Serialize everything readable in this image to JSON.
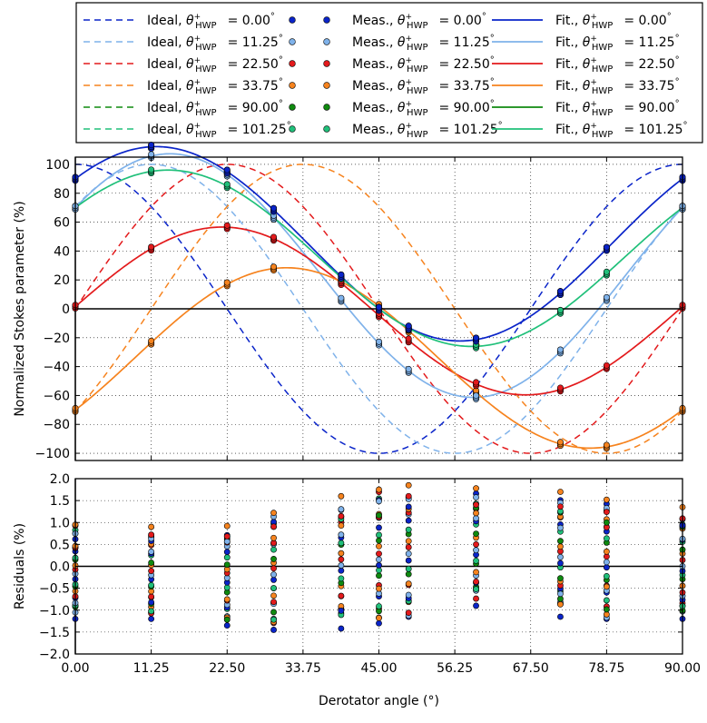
{
  "chart_data": [
    {
      "type": "line",
      "panel": "main",
      "ylabel": "Normalized Stokes parameter (%)",
      "xlabel": "",
      "xlim": [
        0,
        90
      ],
      "ylim": [
        -105,
        105
      ],
      "xticks": [
        0,
        11.25,
        22.5,
        33.75,
        45,
        56.25,
        67.5,
        78.75,
        90
      ],
      "xtick_labels": [
        "0.00",
        "11.25",
        "22.50",
        "33.75",
        "45.00",
        "56.25",
        "67.50",
        "78.75",
        "90.00"
      ],
      "yticks": [
        -100,
        -80,
        -60,
        -40,
        -20,
        0,
        20,
        40,
        60,
        80,
        100
      ],
      "ytick_labels": [
        "−100",
        "−80",
        "−60",
        "−40",
        "−20",
        "0",
        "20",
        "40",
        "60",
        "80",
        "100"
      ],
      "grid": true,
      "legend_position": "top",
      "series": [
        {
          "hwp": "0.00",
          "color": "#0a24c9",
          "ideal_phase": 0,
          "fit": {
            "c0": 45,
            "c": 45,
            "s": 50
          }
        },
        {
          "hwp": "11.25",
          "color": "#7fb2ea",
          "ideal_phase": 45,
          "fit": {
            "c0": 23,
            "c": 47,
            "s": 70
          }
        },
        {
          "hwp": "22.50",
          "color": "#e31a1c",
          "ideal_phase": 90,
          "fit": {
            "c0": -1.5,
            "c": 3,
            "s": 58
          }
        },
        {
          "hwp": "33.75",
          "color": "#f6831e",
          "ideal_phase": 135,
          "fit": {
            "c0": -34,
            "c": -36,
            "s": 51
          }
        },
        {
          "hwp": "90.00",
          "color": "#0f8a0f",
          "ideal_phase": 0,
          "fit": null
        },
        {
          "hwp": "101.25",
          "color": "#20c07a",
          "ideal_phase": 45,
          "fit": {
            "c0": 35,
            "c": 35,
            "s": 50
          }
        }
      ],
      "measured_x": [
        0,
        11.25,
        22.5,
        29.4,
        39.4,
        45,
        49.4,
        59.4,
        71.9,
        78.75,
        90
      ],
      "measured_note": "measured points lie on the fit curves"
    },
    {
      "type": "scatter",
      "panel": "residuals",
      "ylabel": "Residuals (%)",
      "xlabel": "Derotator angle (°)",
      "xlim": [
        0,
        90
      ],
      "ylim": [
        -2.0,
        2.0
      ],
      "yticks": [
        -2.0,
        -1.5,
        -1.0,
        -0.5,
        0.0,
        0.5,
        1.0,
        1.5,
        2.0
      ],
      "ytick_labels": [
        "−2.0",
        "−1.5",
        "−1.0",
        "−0.5",
        "0.0",
        "0.5",
        "1.0",
        "1.5",
        "2.0"
      ],
      "columns": [
        {
          "x": 0,
          "min": -1.2,
          "max": 0.95
        },
        {
          "x": 11.25,
          "min": -1.2,
          "max": 0.9
        },
        {
          "x": 22.5,
          "min": -1.35,
          "max": 0.92
        },
        {
          "x": 29.4,
          "min": -1.45,
          "max": 1.22
        },
        {
          "x": 39.4,
          "min": -1.42,
          "max": 1.6
        },
        {
          "x": 45,
          "min": -1.3,
          "max": 1.75
        },
        {
          "x": 49.4,
          "min": -1.15,
          "max": 1.85
        },
        {
          "x": 59.4,
          "min": -0.9,
          "max": 1.78
        },
        {
          "x": 71.9,
          "min": -1.15,
          "max": 1.7
        },
        {
          "x": 78.75,
          "min": -1.2,
          "max": 1.52
        },
        {
          "x": 90,
          "min": -1.2,
          "max": 1.35
        }
      ]
    }
  ],
  "legend": {
    "ideal_prefix": "Ideal,",
    "meas_prefix": "Meas.,",
    "fit_prefix": "Fit.,",
    "theta_symbol": "θ",
    "theta_super": "+",
    "theta_sub": "HWP",
    "eq": "=",
    "degree": "°"
  },
  "axis_labels": {
    "main_y": "Normalized Stokes parameter (%)",
    "res_y": "Residuals (%)",
    "x": "Derotator angle (°)"
  }
}
